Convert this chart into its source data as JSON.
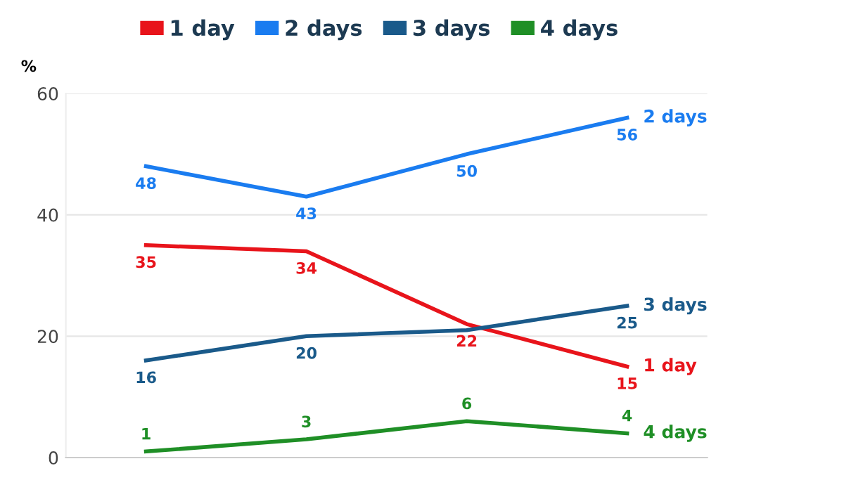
{
  "chart_data": {
    "type": "line",
    "ylabel": "%",
    "categories": [
      null,
      null,
      null,
      null
    ],
    "series": [
      {
        "name": "1 day",
        "color": "#e8141b",
        "values": [
          35,
          34,
          22,
          15
        ],
        "value_labels": [
          "35",
          "34",
          "22",
          "15"
        ]
      },
      {
        "name": "2 days",
        "color": "#1a7cf0",
        "values": [
          48,
          43,
          50,
          56
        ],
        "value_labels": [
          "48",
          "43",
          "50",
          "56"
        ]
      },
      {
        "name": "3 days",
        "color": "#1a5a8a",
        "values": [
          16,
          20,
          21,
          25
        ],
        "value_labels": [
          "16",
          "20",
          null,
          "25"
        ]
      },
      {
        "name": "4 days",
        "color": "#1f8f26",
        "values": [
          1,
          3,
          6,
          4
        ],
        "value_labels": [
          "1",
          "3",
          "6",
          "4"
        ]
      }
    ],
    "ylim": [
      0,
      60
    ],
    "yticks": [
      0,
      20,
      40,
      60
    ],
    "grid": "y",
    "legend": "top",
    "marker": "none",
    "line_style": "solid"
  }
}
